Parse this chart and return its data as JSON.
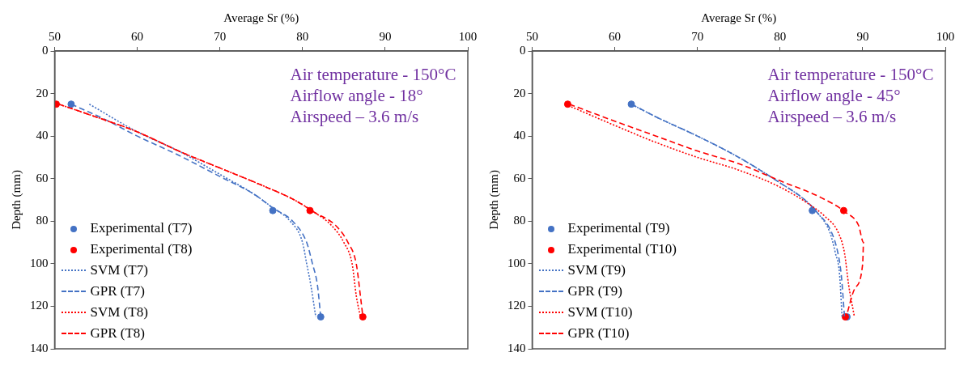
{
  "chart_data": [
    {
      "type": "line",
      "xlabel": "Average Sr (%)",
      "ylabel": "Depth (mm)",
      "xlim": [
        50,
        100
      ],
      "xticks": [
        50,
        60,
        70,
        80,
        90,
        100
      ],
      "ylim": [
        140,
        0
      ],
      "yticks": [
        0,
        20,
        40,
        60,
        80,
        100,
        120,
        140
      ],
      "grid": false,
      "legend": "bottom left",
      "annotations": [
        "Air temperature - 150°C",
        "Airflow angle - 18°",
        "Airspeed – 3.6 m/s"
      ],
      "series": [
        {
          "type": "scatter",
          "name": "Experimental (T7)",
          "color": "#4472c4",
          "marker": "circle",
          "x": [
            52,
            76.4,
            82.2
          ],
          "values": [
            25,
            75,
            125
          ]
        },
        {
          "type": "scatter",
          "name": "Experimental (T8)",
          "color": "#ff0000",
          "marker": "circle",
          "x": [
            50.2,
            80.9,
            87.3
          ],
          "values": [
            25,
            75,
            125
          ]
        },
        {
          "name": "SVM (T7)",
          "color": "#4472c4",
          "line_style": "dotted",
          "x": [
            54.2,
            60,
            65,
            70,
            74,
            76.5,
            78.5,
            80,
            80.5,
            81,
            81.6
          ],
          "values": [
            25,
            38,
            47,
            58,
            67,
            74,
            80,
            90,
            100,
            110,
            125
          ]
        },
        {
          "name": "GPR (T7)",
          "color": "#4472c4",
          "line_style": "dashed",
          "x": [
            52,
            56,
            60,
            65,
            70,
            74,
            76.5,
            78.8,
            80.5,
            81.2,
            81.8,
            82.2
          ],
          "values": [
            25,
            32,
            40,
            49,
            59,
            67,
            74,
            80,
            90,
            100,
            110,
            125
          ]
        },
        {
          "name": "SVM (T8)",
          "color": "#ff0000",
          "line_style": "dotted",
          "x": [
            50.5,
            55,
            60,
            65,
            70,
            75,
            79,
            81.5,
            83.5,
            85,
            86,
            86.5,
            87
          ],
          "values": [
            25,
            31,
            38,
            47,
            55,
            63,
            70,
            76,
            82,
            90,
            100,
            115,
            125
          ]
        },
        {
          "name": "GPR (T8)",
          "color": "#ff0000",
          "line_style": "dashed",
          "x": [
            50.5,
            55,
            60,
            65,
            70,
            75,
            79,
            81.5,
            84,
            85.5,
            86.5,
            87,
            87.3
          ],
          "values": [
            25,
            31,
            38,
            47,
            55,
            63,
            70,
            76,
            82,
            90,
            100,
            115,
            125
          ]
        }
      ]
    },
    {
      "type": "line",
      "xlabel": "Average Sr (%)",
      "ylabel": "Depth (mm)",
      "xlim": [
        50,
        100
      ],
      "xticks": [
        50,
        60,
        70,
        80,
        90,
        100
      ],
      "ylim": [
        140,
        0
      ],
      "yticks": [
        0,
        20,
        40,
        60,
        80,
        100,
        120,
        140
      ],
      "grid": false,
      "legend": "bottom left",
      "annotations": [
        "Air temperature - 150°C",
        "Airflow angle - 45°",
        "Airspeed – 3.6 m/s"
      ],
      "series": [
        {
          "type": "scatter",
          "name": "Experimental (T9)",
          "color": "#4472c4",
          "marker": "circle",
          "x": [
            62,
            83.9,
            88.1
          ],
          "values": [
            25,
            75,
            125
          ]
        },
        {
          "type": "scatter",
          "name": "Experimental (T10)",
          "color": "#ff0000",
          "marker": "circle",
          "x": [
            54.3,
            87.7,
            87.9
          ],
          "values": [
            25,
            75,
            125
          ]
        },
        {
          "name": "SVM (T9)",
          "color": "#4472c4",
          "line_style": "dotted",
          "x": [
            62,
            65,
            70,
            75,
            80,
            83,
            84.5,
            86,
            86.7,
            87.2,
            87.5
          ],
          "values": [
            25,
            31,
            40,
            50,
            62,
            70,
            76,
            85,
            95,
            105,
            125
          ]
        },
        {
          "name": "GPR (T9)",
          "color": "#4472c4",
          "line_style": "dashed",
          "x": [
            62,
            65,
            70,
            75,
            80,
            83,
            84.5,
            86.2,
            87,
            87.4,
            87.8
          ],
          "values": [
            25,
            31,
            40,
            50,
            62,
            70,
            76,
            85,
            95,
            105,
            125
          ]
        },
        {
          "name": "SVM (T10)",
          "color": "#ff0000",
          "line_style": "dotted",
          "x": [
            54,
            60,
            65,
            70,
            75,
            80,
            83.5,
            85.5,
            87,
            87.8,
            88.3,
            89
          ],
          "values": [
            25,
            35,
            43,
            50,
            56,
            64,
            72,
            78,
            85,
            95,
            110,
            125
          ]
        },
        {
          "name": "GPR (T10)",
          "color": "#ff0000",
          "line_style": "dashed",
          "x": [
            54.5,
            60,
            65,
            70,
            75,
            80,
            85,
            88,
            89.5,
            90.1,
            90,
            89,
            88
          ],
          "values": [
            25,
            33,
            40,
            47,
            53,
            61,
            69,
            76,
            82,
            90,
            100,
            112,
            125
          ]
        }
      ]
    }
  ]
}
